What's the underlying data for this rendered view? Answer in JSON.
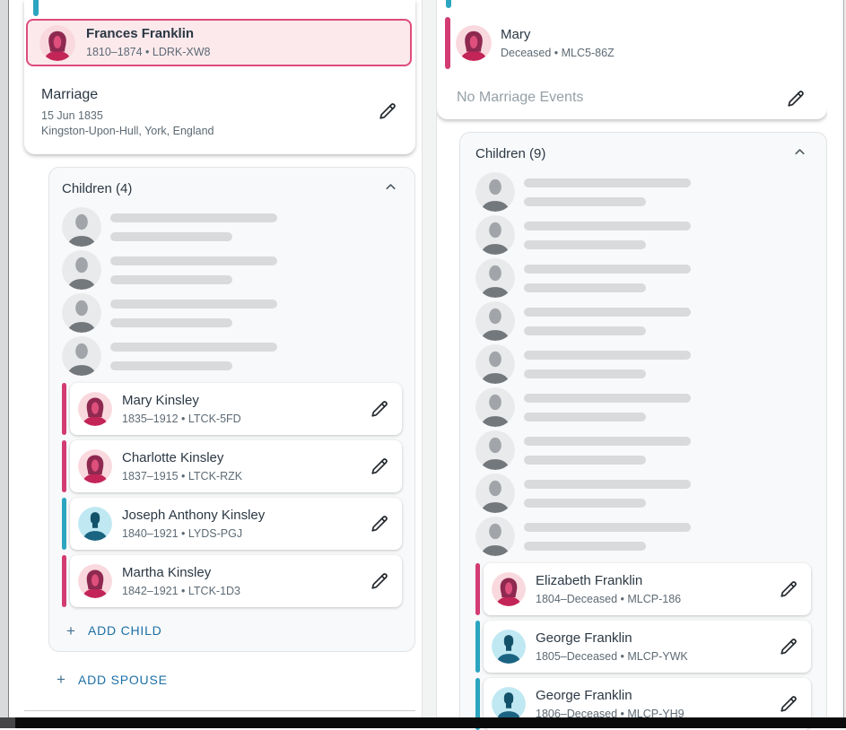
{
  "separator": "•",
  "plus_sign": "+",
  "colors": {
    "female_accent": "#D23C72",
    "male_accent": "#2BA5C0",
    "selected_card_bg": "#FBE9EC",
    "selected_card_border": "#DE4C7D",
    "link_blue": "#1C6FA5",
    "skeleton_bar": "#D9DADB"
  },
  "left_panel": {
    "selected_spouse": {
      "name": "Frances Franklin",
      "lifespan": "1810–1874",
      "pid": "LDRK-XW8",
      "sex": "female"
    },
    "marriage": {
      "title": "Marriage",
      "date": "15 Jun 1835",
      "place": "Kingston-Upon-Hull, York, England"
    },
    "children": {
      "header": "Children (4)",
      "loading_count": 4,
      "items": [
        {
          "name": "Mary Kinsley",
          "lifespan": "1835–1912",
          "pid": "LTCK-5FD",
          "sex": "female"
        },
        {
          "name": "Charlotte Kinsley",
          "lifespan": "1837–1915",
          "pid": "LTCK-RZK",
          "sex": "female"
        },
        {
          "name": "Joseph Anthony Kinsley",
          "lifespan": "1840–1921",
          "pid": "LYDS-PGJ",
          "sex": "male"
        },
        {
          "name": "Martha Kinsley",
          "lifespan": "1842–1921",
          "pid": "LTCK-1D3",
          "sex": "female"
        }
      ],
      "add_child_label": "ADD CHILD"
    },
    "add_spouse_label": "ADD SPOUSE"
  },
  "right_panel": {
    "selected_spouse": {
      "name": "Mary",
      "lifespan": "Deceased",
      "pid": "MLC5-86Z",
      "sex": "female"
    },
    "marriage": {
      "empty_label": "No Marriage Events"
    },
    "children": {
      "header": "Children (9)",
      "loading_count": 9,
      "items": [
        {
          "name": "Elizabeth Franklin",
          "lifespan": "1804–Deceased",
          "pid": "MLCP-186",
          "sex": "female"
        },
        {
          "name": "George Franklin",
          "lifespan": "1805–Deceased",
          "pid": "MLCP-YWK",
          "sex": "male"
        },
        {
          "name": "George Franklin",
          "lifespan": "1806–Deceased",
          "pid": "MLCP-YH9",
          "sex": "male"
        }
      ]
    }
  }
}
